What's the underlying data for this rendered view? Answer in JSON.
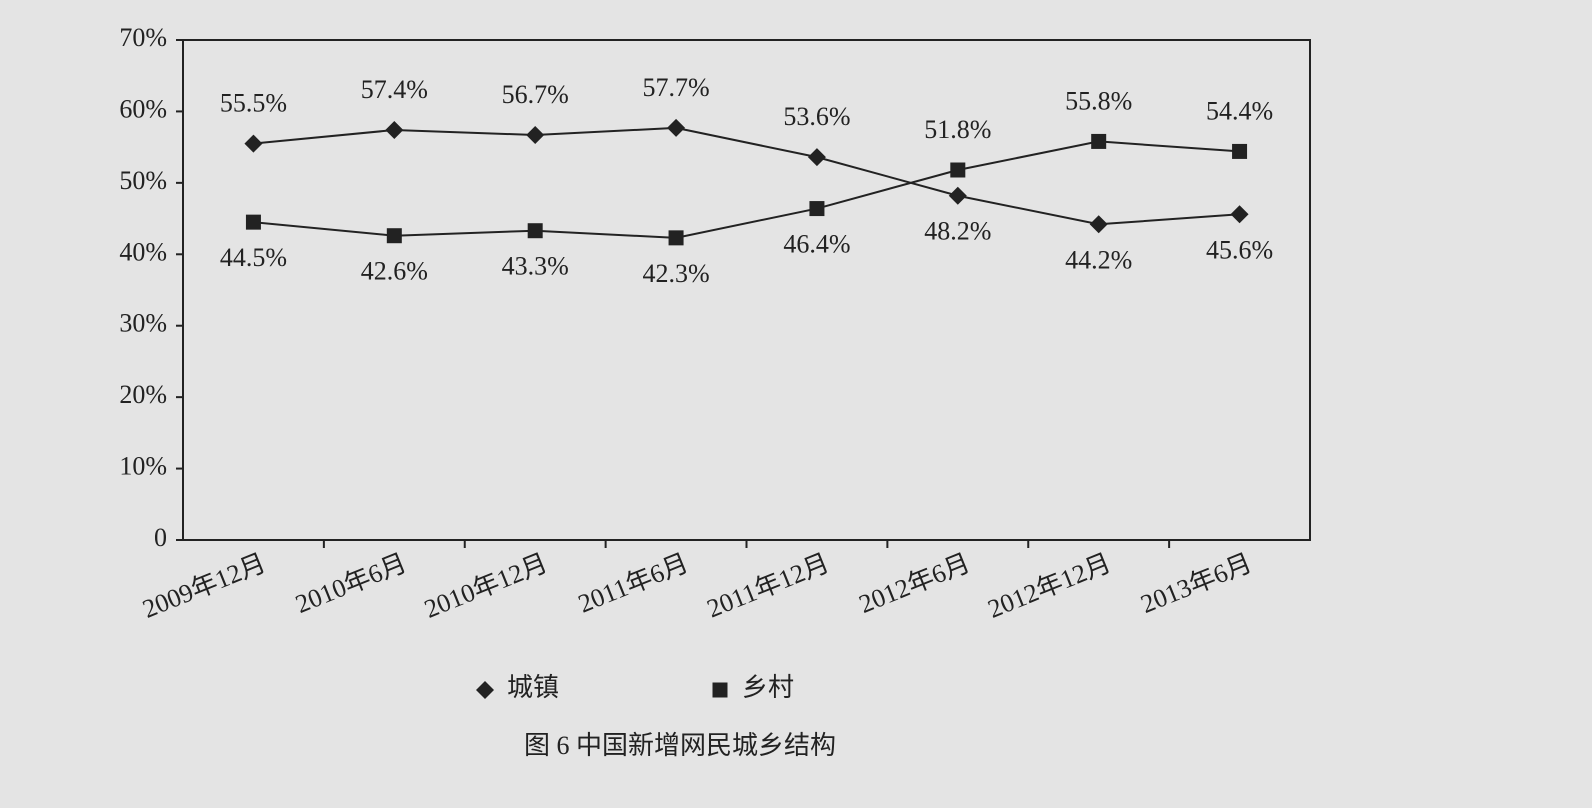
{
  "chart_data": {
    "type": "line",
    "caption": "图 6  中国新增网民城乡结构",
    "categories": [
      "2009年12月",
      "2010年6月",
      "2010年12月",
      "2011年6月",
      "2011年12月",
      "2012年6月",
      "2012年12月",
      "2013年6月"
    ],
    "series": [
      {
        "name": "城镇",
        "color": "#222222",
        "marker": "diamond",
        "values": [
          55.5,
          57.4,
          56.7,
          57.7,
          53.6,
          48.2,
          44.2,
          45.6
        ],
        "value_labels": [
          "55.5%",
          "57.4%",
          "56.7%",
          "57.7%",
          "53.6%",
          "48.2%",
          "44.2%",
          "45.6%"
        ]
      },
      {
        "name": "乡村",
        "color": "#222222",
        "marker": "square",
        "values": [
          44.5,
          42.6,
          43.3,
          42.3,
          46.4,
          51.8,
          55.8,
          54.4
        ],
        "value_labels": [
          "44.5%",
          "42.6%",
          "43.3%",
          "42.3%",
          "46.4%",
          "51.8%",
          "55.8%",
          "54.4%"
        ]
      }
    ],
    "ylim": [
      0,
      70
    ],
    "yticks": [
      0,
      {
        "value": 10,
        "label": "10%"
      },
      {
        "value": 20,
        "label": "20%"
      },
      {
        "value": 30,
        "label": "30%"
      },
      {
        "value": 40,
        "label": "40%"
      },
      {
        "value": 50,
        "label": "50%"
      },
      {
        "value": 60,
        "label": "60%"
      },
      {
        "value": 70,
        "label": "70%"
      }
    ]
  }
}
